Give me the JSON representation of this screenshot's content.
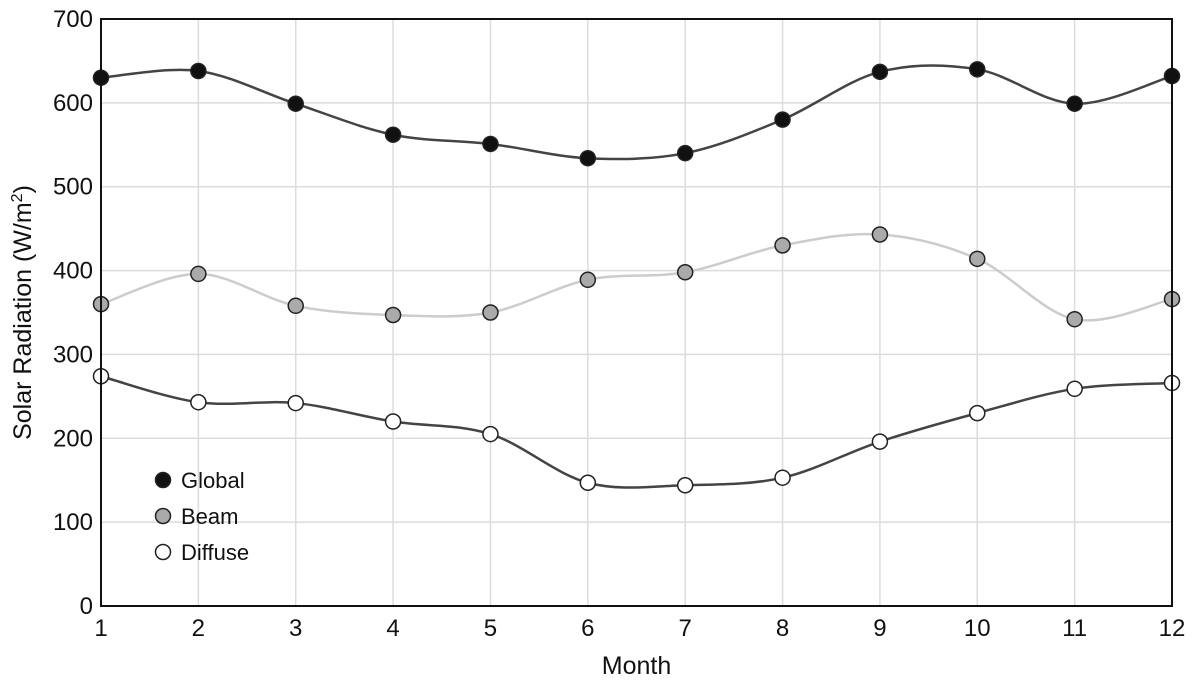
{
  "chart_data": {
    "type": "line",
    "xlabel": "Month",
    "ylabel_main": "Solar Radiation (W/m",
    "ylabel_sup": "2",
    "ylabel_close": ")",
    "x": [
      1,
      2,
      3,
      4,
      5,
      6,
      7,
      8,
      9,
      10,
      11,
      12
    ],
    "xlim": [
      1,
      12
    ],
    "ylim": [
      0,
      700
    ],
    "yticks": [
      0,
      100,
      200,
      300,
      400,
      500,
      600,
      700
    ],
    "grid": true,
    "legend_position": "bottom-left",
    "series": [
      {
        "name": "Global",
        "color": "#111111",
        "line_color": "#444444",
        "marker_fill": "#111111",
        "values": [
          630,
          638,
          599,
          562,
          551,
          534,
          540,
          580,
          637,
          640,
          599,
          632
        ]
      },
      {
        "name": "Beam",
        "color": "#aaaaaa",
        "line_color": "#cccccc",
        "marker_fill": "#aaaaaa",
        "values": [
          360,
          396,
          358,
          347,
          350,
          389,
          398,
          430,
          443,
          414,
          342,
          366
        ]
      },
      {
        "name": "Diffuse",
        "color": "#ffffff",
        "line_color": "#444444",
        "marker_fill": "#ffffff",
        "values": [
          274,
          243,
          242,
          220,
          205,
          147,
          144,
          153,
          196,
          230,
          259,
          266
        ]
      }
    ]
  }
}
